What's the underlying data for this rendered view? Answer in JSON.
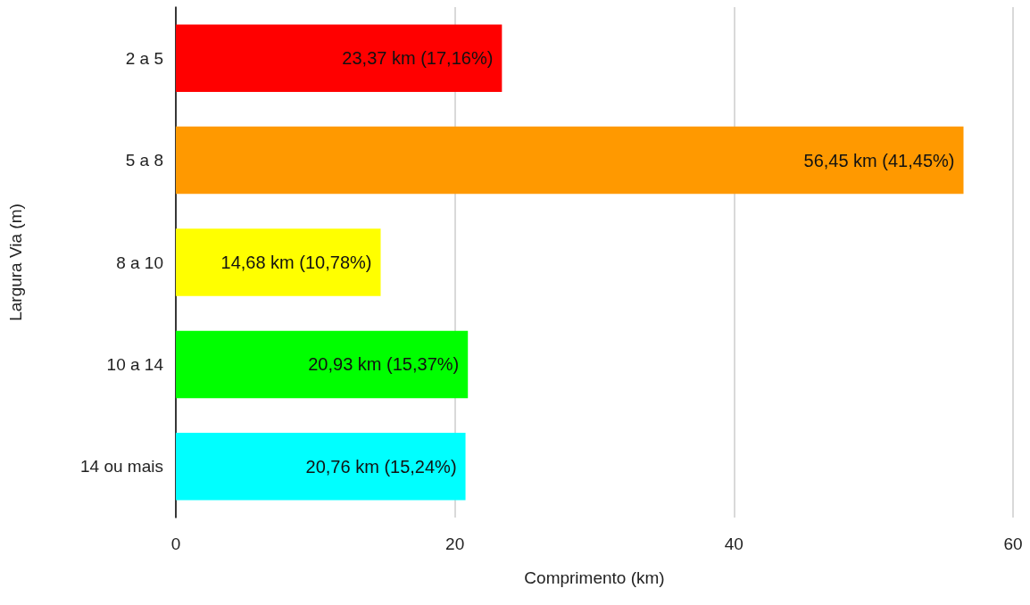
{
  "chart_data": {
    "type": "bar",
    "orientation": "horizontal",
    "xlabel": "Comprimento (km)",
    "ylabel": "Largura Via (m)",
    "categories": [
      "2 a 5",
      "5 a 8",
      "8 a 10",
      "10 a 14",
      "14 ou mais"
    ],
    "values": [
      23.37,
      56.45,
      14.68,
      20.93,
      20.76
    ],
    "colors": [
      "#ff0000",
      "#ff9900",
      "#ffff00",
      "#00ff00",
      "#00ffff"
    ],
    "value_labels": [
      "23,37 km (17,16%)",
      "56,45 km (41,45%)",
      "14,68 km (10,78%)",
      "20,93 km (15,37%)",
      "20,76 km (15,24%)"
    ],
    "xlim": [
      0,
      60
    ],
    "xticks": [
      0,
      20,
      40,
      60
    ],
    "grid": "x"
  }
}
